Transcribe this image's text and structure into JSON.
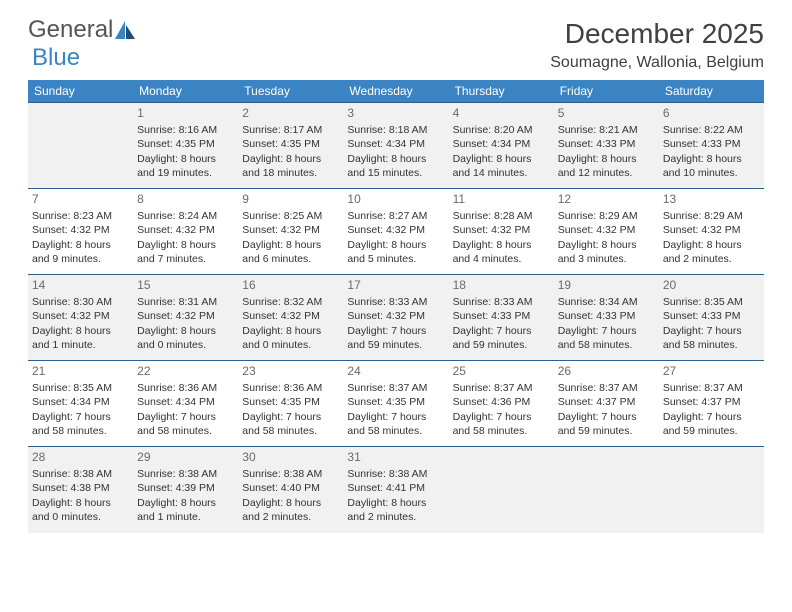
{
  "logo": {
    "text1": "General",
    "text2": "Blue",
    "icon_color": "#2a5f8f"
  },
  "header": {
    "title": "December 2025",
    "location": "Soumagne, Wallonia, Belgium"
  },
  "colors": {
    "header_bg": "#3a84c4",
    "header_text": "#ffffff",
    "row_border": "#2a5f8f",
    "row_odd_bg": "#f1f1f1",
    "row_even_bg": "#ffffff",
    "text": "#333333",
    "daynum": "#6a6a6a"
  },
  "daysOfWeek": [
    "Sunday",
    "Monday",
    "Tuesday",
    "Wednesday",
    "Thursday",
    "Friday",
    "Saturday"
  ],
  "startWeekday": 1,
  "days": [
    {
      "n": 1,
      "sunrise": "8:16 AM",
      "sunset": "4:35 PM",
      "daylight": "8 hours and 19 minutes."
    },
    {
      "n": 2,
      "sunrise": "8:17 AM",
      "sunset": "4:35 PM",
      "daylight": "8 hours and 18 minutes."
    },
    {
      "n": 3,
      "sunrise": "8:18 AM",
      "sunset": "4:34 PM",
      "daylight": "8 hours and 15 minutes."
    },
    {
      "n": 4,
      "sunrise": "8:20 AM",
      "sunset": "4:34 PM",
      "daylight": "8 hours and 14 minutes."
    },
    {
      "n": 5,
      "sunrise": "8:21 AM",
      "sunset": "4:33 PM",
      "daylight": "8 hours and 12 minutes."
    },
    {
      "n": 6,
      "sunrise": "8:22 AM",
      "sunset": "4:33 PM",
      "daylight": "8 hours and 10 minutes."
    },
    {
      "n": 7,
      "sunrise": "8:23 AM",
      "sunset": "4:32 PM",
      "daylight": "8 hours and 9 minutes."
    },
    {
      "n": 8,
      "sunrise": "8:24 AM",
      "sunset": "4:32 PM",
      "daylight": "8 hours and 7 minutes."
    },
    {
      "n": 9,
      "sunrise": "8:25 AM",
      "sunset": "4:32 PM",
      "daylight": "8 hours and 6 minutes."
    },
    {
      "n": 10,
      "sunrise": "8:27 AM",
      "sunset": "4:32 PM",
      "daylight": "8 hours and 5 minutes."
    },
    {
      "n": 11,
      "sunrise": "8:28 AM",
      "sunset": "4:32 PM",
      "daylight": "8 hours and 4 minutes."
    },
    {
      "n": 12,
      "sunrise": "8:29 AM",
      "sunset": "4:32 PM",
      "daylight": "8 hours and 3 minutes."
    },
    {
      "n": 13,
      "sunrise": "8:29 AM",
      "sunset": "4:32 PM",
      "daylight": "8 hours and 2 minutes."
    },
    {
      "n": 14,
      "sunrise": "8:30 AM",
      "sunset": "4:32 PM",
      "daylight": "8 hours and 1 minute."
    },
    {
      "n": 15,
      "sunrise": "8:31 AM",
      "sunset": "4:32 PM",
      "daylight": "8 hours and 0 minutes."
    },
    {
      "n": 16,
      "sunrise": "8:32 AM",
      "sunset": "4:32 PM",
      "daylight": "8 hours and 0 minutes."
    },
    {
      "n": 17,
      "sunrise": "8:33 AM",
      "sunset": "4:32 PM",
      "daylight": "7 hours and 59 minutes."
    },
    {
      "n": 18,
      "sunrise": "8:33 AM",
      "sunset": "4:33 PM",
      "daylight": "7 hours and 59 minutes."
    },
    {
      "n": 19,
      "sunrise": "8:34 AM",
      "sunset": "4:33 PM",
      "daylight": "7 hours and 58 minutes."
    },
    {
      "n": 20,
      "sunrise": "8:35 AM",
      "sunset": "4:33 PM",
      "daylight": "7 hours and 58 minutes."
    },
    {
      "n": 21,
      "sunrise": "8:35 AM",
      "sunset": "4:34 PM",
      "daylight": "7 hours and 58 minutes."
    },
    {
      "n": 22,
      "sunrise": "8:36 AM",
      "sunset": "4:34 PM",
      "daylight": "7 hours and 58 minutes."
    },
    {
      "n": 23,
      "sunrise": "8:36 AM",
      "sunset": "4:35 PM",
      "daylight": "7 hours and 58 minutes."
    },
    {
      "n": 24,
      "sunrise": "8:37 AM",
      "sunset": "4:35 PM",
      "daylight": "7 hours and 58 minutes."
    },
    {
      "n": 25,
      "sunrise": "8:37 AM",
      "sunset": "4:36 PM",
      "daylight": "7 hours and 58 minutes."
    },
    {
      "n": 26,
      "sunrise": "8:37 AM",
      "sunset": "4:37 PM",
      "daylight": "7 hours and 59 minutes."
    },
    {
      "n": 27,
      "sunrise": "8:37 AM",
      "sunset": "4:37 PM",
      "daylight": "7 hours and 59 minutes."
    },
    {
      "n": 28,
      "sunrise": "8:38 AM",
      "sunset": "4:38 PM",
      "daylight": "8 hours and 0 minutes."
    },
    {
      "n": 29,
      "sunrise": "8:38 AM",
      "sunset": "4:39 PM",
      "daylight": "8 hours and 1 minute."
    },
    {
      "n": 30,
      "sunrise": "8:38 AM",
      "sunset": "4:40 PM",
      "daylight": "8 hours and 2 minutes."
    },
    {
      "n": 31,
      "sunrise": "8:38 AM",
      "sunset": "4:41 PM",
      "daylight": "8 hours and 2 minutes."
    }
  ],
  "labels": {
    "sunrise": "Sunrise:",
    "sunset": "Sunset:",
    "daylight": "Daylight:"
  }
}
